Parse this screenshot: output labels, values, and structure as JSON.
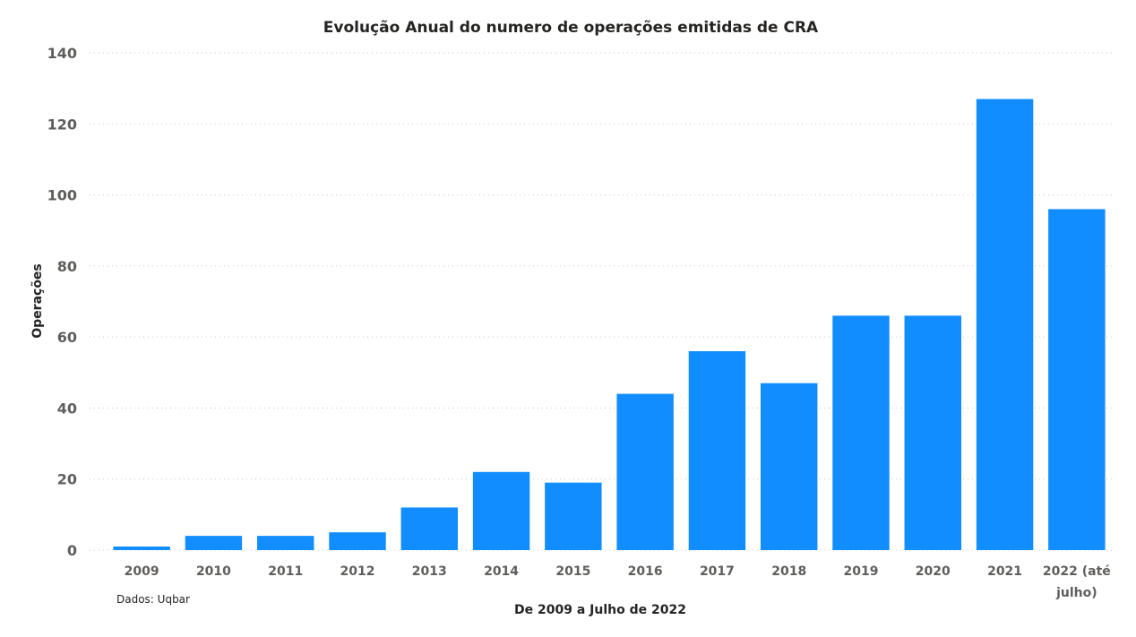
{
  "chart_data": {
    "type": "bar",
    "title": "Evolução Anual do numero de operações emitidas de CRA",
    "xlabel": "De 2009 a Julho de 2022",
    "ylabel": "Operações",
    "note": "Dados: Uqbar",
    "categories": [
      "2009",
      "2010",
      "2011",
      "2012",
      "2013",
      "2014",
      "2015",
      "2016",
      "2017",
      "2018",
      "2019",
      "2020",
      "2021",
      "2022 (até julho)"
    ],
    "values": [
      1,
      4,
      4,
      5,
      12,
      22,
      19,
      44,
      56,
      47,
      66,
      66,
      127,
      96
    ],
    "ylim": [
      0,
      140
    ],
    "yticks": [
      0,
      20,
      40,
      60,
      80,
      100,
      120,
      140
    ],
    "grid": true,
    "bar_color": "#118dff"
  }
}
